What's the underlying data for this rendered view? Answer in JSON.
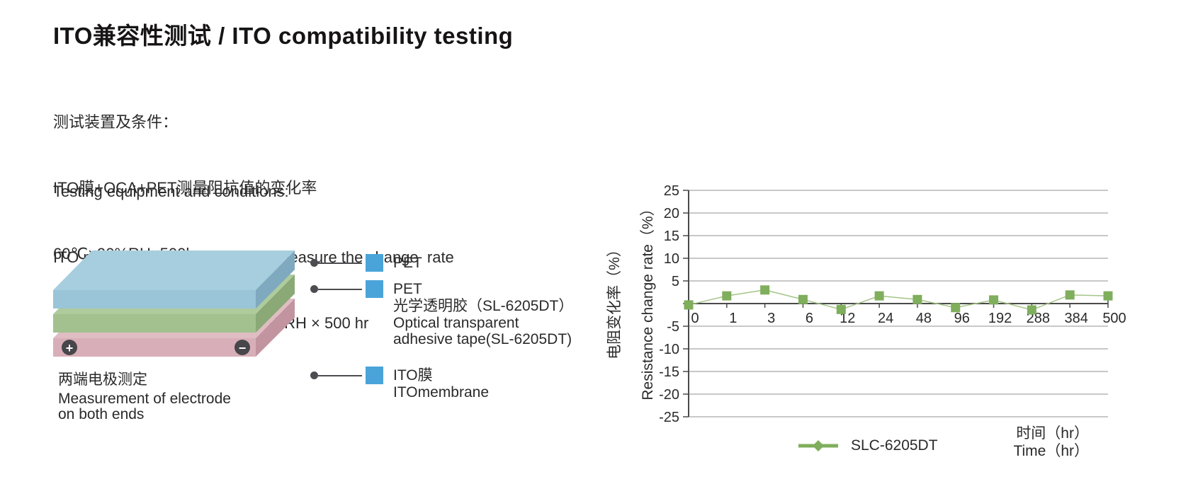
{
  "page": {
    "title": "ITO兼容性测试 / ITO compatibility testing"
  },
  "conditions": {
    "zh": [
      "测试装置及条件：",
      "ITO膜+OCA+PET测量阻抗值的变化率",
      "60℃×90%RH×500hr"
    ],
    "en": [
      "Testing equipment and conditions:",
      "ITO menbrane + OCA + PET, to measure the change  rate",
      "of resistance value 60 ° C × 90% RH × 500 hr"
    ]
  },
  "diagram": {
    "caption_zh": "两端电极测定",
    "caption_en_line1": "Measurement of electrode",
    "caption_en_line2": "on both ends",
    "electrode_plus": "+",
    "electrode_minus": "−",
    "electrode_color": "#46464b",
    "layers": [
      {
        "name": "PET film (top)",
        "colors": {
          "top": "#a7cede",
          "front": "#9ac4d7",
          "side": "#7ea9bf"
        }
      },
      {
        "name": "adhesive (middle)",
        "colors": {
          "top": "#aecb9c",
          "front": "#a2c18e",
          "side": "#8aa977"
        }
      },
      {
        "name": "ITO film (bottom)",
        "colors": {
          "top": "#dfbdc3",
          "front": "#d8afb8",
          "side": "#c2949f"
        }
      }
    ]
  },
  "callouts": {
    "square_color": "#4aa4d9",
    "items": [
      {
        "label": "PET",
        "sub": []
      },
      {
        "label": "PET",
        "sub": [
          "光学透明胶（SL-6205DT）",
          "Optical transparent",
          "adhesive tape(SL-6205DT)"
        ]
      },
      {
        "label": "ITO膜",
        "sub": [
          "ITOmembrane"
        ]
      }
    ]
  },
  "chart_data": {
    "type": "line",
    "title": "",
    "x": [
      "0",
      "1",
      "3",
      "6",
      "12",
      "24",
      "48",
      "96",
      "192",
      "288",
      "384",
      "500"
    ],
    "series": [
      {
        "name": "SLC-6205DT",
        "values": [
          -0.3,
          1.7,
          3.0,
          0.9,
          -1.3,
          1.7,
          0.9,
          -0.9,
          0.8,
          -1.4,
          1.9,
          1.7
        ],
        "color": "#7fae5c",
        "line_color": "#a4c487"
      }
    ],
    "ylabel_zh": "电阻变化率（%）",
    "ylabel_en": "Resistance change rate（%）",
    "xlabel_zh": "时间（hr）",
    "xlabel_en": "Time（hr）",
    "ylim": [
      -25,
      25
    ],
    "ytick_step": 5,
    "yticks": [
      "25",
      "20",
      "15",
      "10",
      "5",
      "-5",
      "-10",
      "-15",
      "-20",
      "-25"
    ],
    "grid": true,
    "grid_color": "#a8a8a8",
    "axis_color": "#4a4a4a",
    "legend_label": "SLC-6205DT",
    "legend_position": "bottom"
  }
}
